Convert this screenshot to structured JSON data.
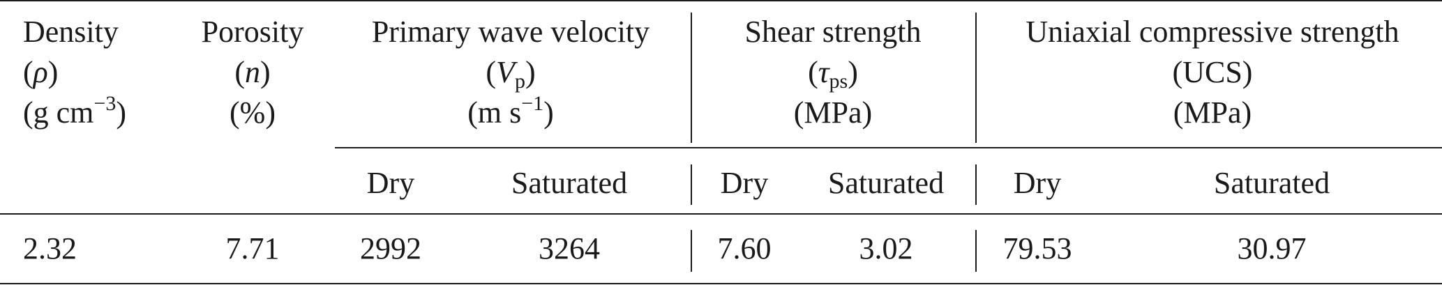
{
  "table": {
    "col_density": {
      "name": "Density",
      "symbol_open": "(",
      "symbol": "ρ",
      "symbol_close": ")",
      "unit_base": "(g cm",
      "unit_exp": "−3",
      "unit_close": ")"
    },
    "col_porosity": {
      "name": "Porosity",
      "symbol_open": "(",
      "symbol": "n",
      "symbol_close": ")",
      "unit": "(%)"
    },
    "col_vp": {
      "name": "Primary wave velocity",
      "symbol_open": "(",
      "symbol": "V",
      "symbol_sub": "p",
      "symbol_close": ")",
      "unit_base": "(m s",
      "unit_exp": "−1",
      "unit_close": ")"
    },
    "col_shear": {
      "name": "Shear strength",
      "symbol_open": "(",
      "symbol": "τ",
      "symbol_sub": "ps",
      "symbol_close": ")",
      "unit": "(MPa)"
    },
    "col_ucs": {
      "name": "Uniaxial compressive strength",
      "symbol": "(UCS)",
      "unit": "(MPa)"
    },
    "subheaders": {
      "vp_dry": "Dry",
      "vp_sat": "Saturated",
      "shear_dry": "Dry",
      "shear_sat": "Saturated",
      "ucs_dry": "Dry",
      "ucs_sat": "Saturated"
    },
    "row": {
      "density": "2.32",
      "porosity": "7.71",
      "vp_dry": "2992",
      "vp_sat": "3264",
      "shear_dry": "7.60",
      "shear_sat": "3.02",
      "ucs_dry": "79.53",
      "ucs_sat": "30.97"
    }
  }
}
